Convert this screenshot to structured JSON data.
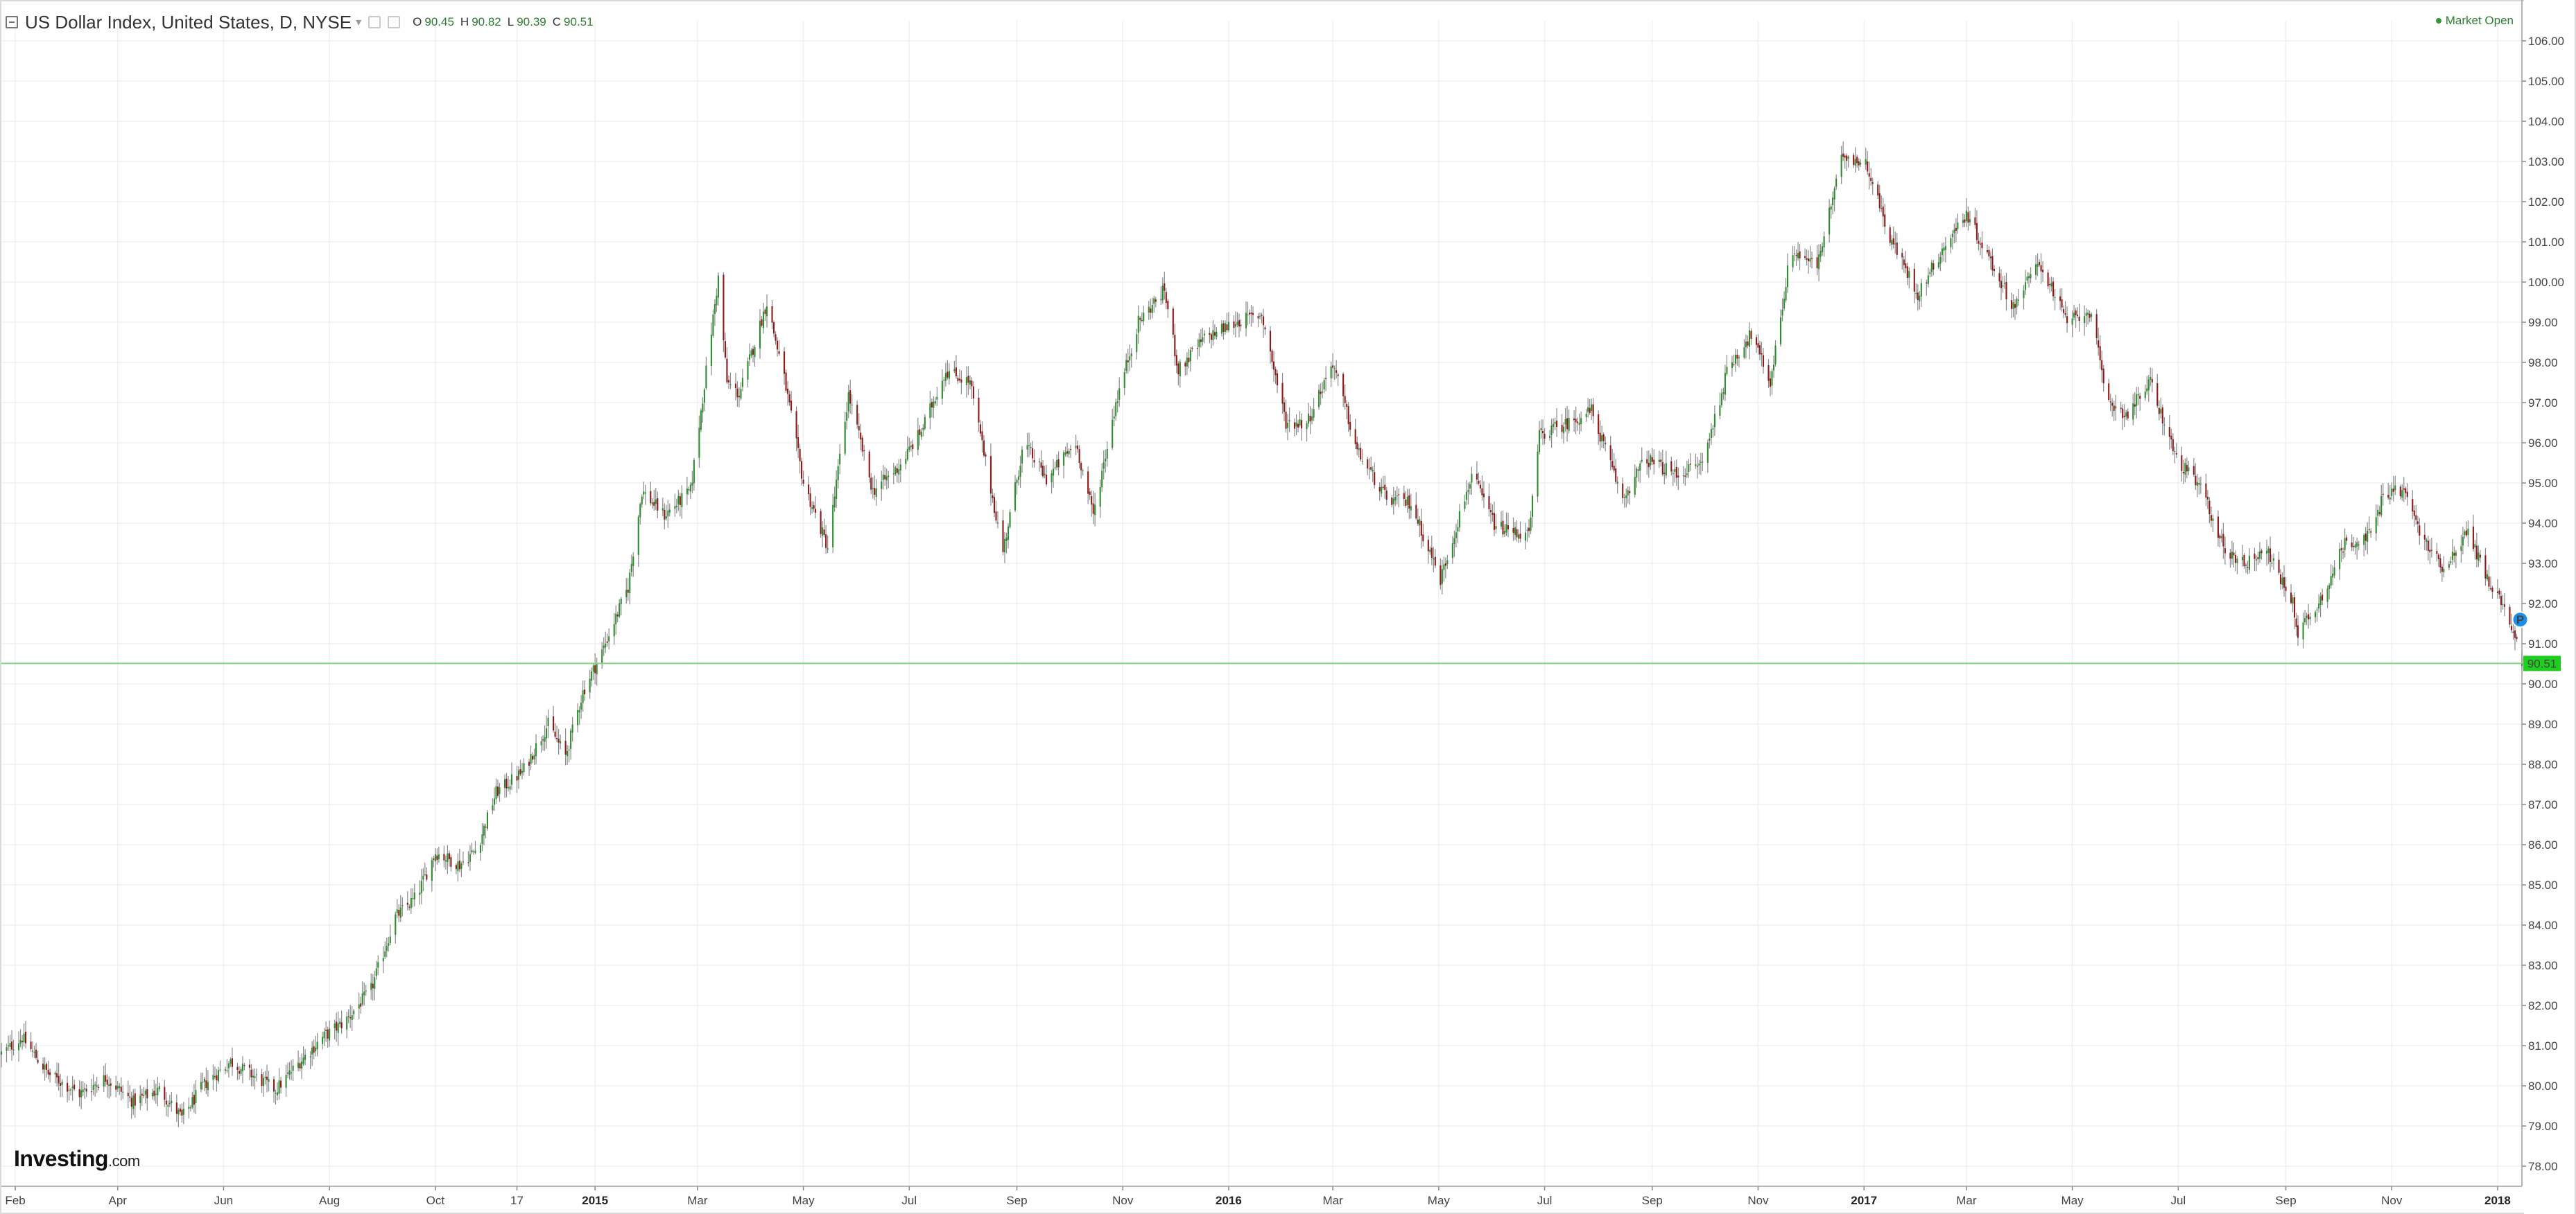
{
  "header": {
    "symbol_label": "US Dollar Index, United States, D, NYSE",
    "ohlc": {
      "o_label": "O",
      "o_value": "90.45",
      "h_label": "H",
      "h_value": "90.82",
      "l_label": "L",
      "l_value": "90.39",
      "c_label": "C",
      "c_value": "90.51"
    }
  },
  "market_status": "Market Open",
  "logo": {
    "brand": "Investing",
    "suffix": ".com"
  },
  "colors": {
    "up": "#2e8b2e",
    "down": "#8b1a1a",
    "grid": "#f0f0f0",
    "last_line": "#7ed87e",
    "price_tag": "#1fcf1f",
    "marker": "#1e8fe8"
  },
  "chart_data": {
    "type": "candlestick",
    "title": "US Dollar Index, United States, D, NYSE",
    "ylim": [
      77.5,
      106.5
    ],
    "y_ticks": [
      "78.00",
      "79.00",
      "80.00",
      "81.00",
      "82.00",
      "83.00",
      "84.00",
      "85.00",
      "86.00",
      "87.00",
      "88.00",
      "89.00",
      "90.00",
      "91.00",
      "92.00",
      "93.00",
      "94.00",
      "95.00",
      "96.00",
      "97.00",
      "98.00",
      "99.00",
      "100.00",
      "101.00",
      "102.00",
      "103.00",
      "104.00",
      "105.00",
      "106.00"
    ],
    "x_range": [
      "2014-01-24",
      "2018-01-15"
    ],
    "x_ticks": [
      {
        "date": "2014-02-01",
        "label": "Feb",
        "major": false
      },
      {
        "date": "2014-04-01",
        "label": "Apr",
        "major": false
      },
      {
        "date": "2014-06-01",
        "label": "Jun",
        "major": false
      },
      {
        "date": "2014-08-01",
        "label": "Aug",
        "major": false
      },
      {
        "date": "2014-10-01",
        "label": "Oct",
        "major": false
      },
      {
        "date": "2014-11-17",
        "label": "17",
        "major": false
      },
      {
        "date": "2015-01-01",
        "label": "2015",
        "major": true
      },
      {
        "date": "2015-03-01",
        "label": "Mar",
        "major": false
      },
      {
        "date": "2015-05-01",
        "label": "May",
        "major": false
      },
      {
        "date": "2015-07-01",
        "label": "Jul",
        "major": false
      },
      {
        "date": "2015-09-01",
        "label": "Sep",
        "major": false
      },
      {
        "date": "2015-11-01",
        "label": "Nov",
        "major": false
      },
      {
        "date": "2016-01-01",
        "label": "2016",
        "major": true
      },
      {
        "date": "2016-03-01",
        "label": "Mar",
        "major": false
      },
      {
        "date": "2016-05-01",
        "label": "May",
        "major": false
      },
      {
        "date": "2016-07-01",
        "label": "Jul",
        "major": false
      },
      {
        "date": "2016-09-01",
        "label": "Sep",
        "major": false
      },
      {
        "date": "2016-11-01",
        "label": "Nov",
        "major": false
      },
      {
        "date": "2017-01-01",
        "label": "2017",
        "major": true
      },
      {
        "date": "2017-03-01",
        "label": "Mar",
        "major": false
      },
      {
        "date": "2017-05-01",
        "label": "May",
        "major": false
      },
      {
        "date": "2017-07-01",
        "label": "Jul",
        "major": false
      },
      {
        "date": "2017-09-01",
        "label": "Sep",
        "major": false
      },
      {
        "date": "2017-11-01",
        "label": "Nov",
        "major": false
      },
      {
        "date": "2018-01-01",
        "label": "2018",
        "major": true
      }
    ],
    "series": [
      {
        "close_path": [
          [
            "2014-01-24",
            80.8
          ],
          [
            "2014-02-05",
            81.2
          ],
          [
            "2014-02-20",
            80.3
          ],
          [
            "2014-03-10",
            79.8
          ],
          [
            "2014-03-25",
            80.2
          ],
          [
            "2014-04-10",
            79.6
          ],
          [
            "2014-04-25",
            79.9
          ],
          [
            "2014-05-08",
            79.2
          ],
          [
            "2014-05-20",
            80.0
          ],
          [
            "2014-06-05",
            80.6
          ],
          [
            "2014-06-20",
            80.2
          ],
          [
            "2014-07-01",
            79.9
          ],
          [
            "2014-07-15",
            80.6
          ],
          [
            "2014-07-28",
            81.2
          ],
          [
            "2014-08-10",
            81.6
          ],
          [
            "2014-08-25",
            82.4
          ],
          [
            "2014-09-08",
            84.2
          ],
          [
            "2014-09-20",
            84.7
          ],
          [
            "2014-10-01",
            85.8
          ],
          [
            "2014-10-15",
            85.5
          ],
          [
            "2014-10-25",
            85.9
          ],
          [
            "2014-11-05",
            87.3
          ],
          [
            "2014-11-20",
            87.8
          ],
          [
            "2014-12-05",
            89.0
          ],
          [
            "2014-12-15",
            88.2
          ],
          [
            "2014-12-25",
            89.8
          ],
          [
            "2015-01-05",
            90.8
          ],
          [
            "2015-01-20",
            92.4
          ],
          [
            "2015-01-28",
            94.8
          ],
          [
            "2015-02-10",
            94.2
          ],
          [
            "2015-02-25",
            94.8
          ],
          [
            "2015-03-13",
            100.1
          ],
          [
            "2015-03-18",
            97.5
          ],
          [
            "2015-03-25",
            97.2
          ],
          [
            "2015-04-10",
            99.5
          ],
          [
            "2015-04-20",
            97.6
          ],
          [
            "2015-05-01",
            95.0
          ],
          [
            "2015-05-15",
            93.4
          ],
          [
            "2015-05-27",
            97.2
          ],
          [
            "2015-06-10",
            94.8
          ],
          [
            "2015-06-25",
            95.4
          ],
          [
            "2015-07-08",
            96.3
          ],
          [
            "2015-07-22",
            97.8
          ],
          [
            "2015-08-05",
            97.5
          ],
          [
            "2015-08-24",
            93.3
          ],
          [
            "2015-09-05",
            96.0
          ],
          [
            "2015-09-18",
            95.1
          ],
          [
            "2015-10-05",
            96.0
          ],
          [
            "2015-10-15",
            94.2
          ],
          [
            "2015-10-28",
            97.0
          ],
          [
            "2015-11-10",
            99.0
          ],
          [
            "2015-11-25",
            99.8
          ],
          [
            "2015-12-03",
            97.8
          ],
          [
            "2015-12-18",
            98.6
          ],
          [
            "2016-01-05",
            99.0
          ],
          [
            "2016-01-20",
            99.2
          ],
          [
            "2016-02-03",
            96.5
          ],
          [
            "2016-02-15",
            96.5
          ],
          [
            "2016-03-01",
            98.0
          ],
          [
            "2016-03-15",
            95.8
          ],
          [
            "2016-04-01",
            94.6
          ],
          [
            "2016-04-15",
            94.5
          ],
          [
            "2016-05-02",
            92.6
          ],
          [
            "2016-05-20",
            95.2
          ],
          [
            "2016-06-03",
            93.9
          ],
          [
            "2016-06-22",
            93.7
          ],
          [
            "2016-06-28",
            96.2
          ],
          [
            "2016-07-15",
            96.5
          ],
          [
            "2016-07-28",
            96.8
          ],
          [
            "2016-08-15",
            94.6
          ],
          [
            "2016-08-28",
            95.6
          ],
          [
            "2016-09-15",
            95.2
          ],
          [
            "2016-09-30",
            95.5
          ],
          [
            "2016-10-15",
            97.9
          ],
          [
            "2016-10-28",
            98.7
          ],
          [
            "2016-11-08",
            97.5
          ],
          [
            "2016-11-20",
            100.8
          ],
          [
            "2016-12-05",
            100.4
          ],
          [
            "2016-12-20",
            103.2
          ],
          [
            "2017-01-03",
            102.9
          ],
          [
            "2017-01-15",
            101.2
          ],
          [
            "2017-02-01",
            99.7
          ],
          [
            "2017-02-15",
            100.8
          ],
          [
            "2017-03-01",
            101.7
          ],
          [
            "2017-03-15",
            100.5
          ],
          [
            "2017-03-28",
            99.4
          ],
          [
            "2017-04-12",
            100.5
          ],
          [
            "2017-04-28",
            99.0
          ],
          [
            "2017-05-12",
            99.3
          ],
          [
            "2017-05-20",
            97.1
          ],
          [
            "2017-06-01",
            96.7
          ],
          [
            "2017-06-15",
            97.5
          ],
          [
            "2017-06-30",
            95.6
          ],
          [
            "2017-07-15",
            94.8
          ],
          [
            "2017-07-28",
            93.3
          ],
          [
            "2017-08-10",
            93.0
          ],
          [
            "2017-08-20",
            93.4
          ],
          [
            "2017-09-05",
            92.0
          ],
          [
            "2017-09-08",
            91.3
          ],
          [
            "2017-09-20",
            92.0
          ],
          [
            "2017-10-05",
            93.5
          ],
          [
            "2017-10-20",
            93.7
          ],
          [
            "2017-10-28",
            94.8
          ],
          [
            "2017-11-08",
            94.8
          ],
          [
            "2017-11-20",
            93.5
          ],
          [
            "2017-12-01",
            92.9
          ],
          [
            "2017-12-15",
            93.8
          ],
          [
            "2017-12-28",
            92.4
          ],
          [
            "2018-01-05",
            92.0
          ],
          [
            "2018-01-12",
            91.0
          ],
          [
            "2018-01-15",
            90.51
          ]
        ]
      }
    ],
    "last_price": {
      "value": 90.51,
      "label": "90.51"
    },
    "marker": {
      "date": "2018-01-14",
      "value": 91.6,
      "label": "P"
    }
  }
}
